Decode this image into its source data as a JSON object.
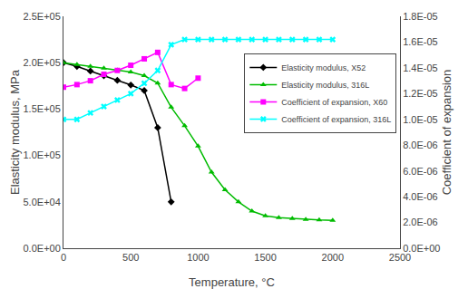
{
  "chart_data": {
    "type": "line",
    "x_label": "Temperature, °C",
    "y_label": "Elasticity modulus, MPa",
    "y2_label": "Coefficient of expansion",
    "xlim": [
      0,
      2500
    ],
    "ylim": [
      0,
      250000
    ],
    "y2lim": [
      0,
      1.8e-05
    ],
    "xticks": [
      0,
      500,
      1000,
      1500,
      2000,
      2500
    ],
    "yticks": [
      {
        "value": 0,
        "label": "0.0E+00"
      },
      {
        "value": 50000,
        "label": "5.0E+04"
      },
      {
        "value": 100000,
        "label": "1.0E+05"
      },
      {
        "value": 150000,
        "label": "1.5E+05"
      },
      {
        "value": 200000,
        "label": "2.0E+05"
      },
      {
        "value": 250000,
        "label": "2.5E+05"
      }
    ],
    "y2ticks": [
      {
        "value": 0,
        "label": "0.0E+00"
      },
      {
        "value": 2e-06,
        "label": "2.0E-06"
      },
      {
        "value": 4e-06,
        "label": "4.0E-06"
      },
      {
        "value": 6e-06,
        "label": "6.0E-06"
      },
      {
        "value": 8e-06,
        "label": "8.0E-06"
      },
      {
        "value": 1e-05,
        "label": "1.0E-05"
      },
      {
        "value": 1.2e-05,
        "label": "1.2E-05"
      },
      {
        "value": 1.4e-05,
        "label": "1.4E-05"
      },
      {
        "value": 1.6e-05,
        "label": "1.6E-05"
      },
      {
        "value": 1.8e-05,
        "label": "1.8E-05"
      }
    ],
    "grid": false,
    "legend": "upper right",
    "series": [
      {
        "name": "Elasticity modulus, X52",
        "color": "black",
        "marker": "diamond",
        "x": [
          0,
          100,
          200,
          300,
          400,
          500,
          600,
          700,
          800
        ],
        "values": [
          200000,
          196000,
          191000,
          186000,
          181000,
          176000,
          170000,
          130000,
          50000
        ]
      },
      {
        "name": "Elasticity modulus, 316L",
        "color": "#00bb00",
        "marker": "triangle-up",
        "x": [
          0,
          100,
          200,
          300,
          400,
          500,
          600,
          700,
          800,
          900,
          1000,
          1100,
          1200,
          1300,
          1400,
          1500,
          1600,
          1700,
          1800,
          1900,
          2000
        ],
        "values": [
          200000,
          198000,
          196000,
          194000,
          192000,
          190000,
          186000,
          178000,
          152000,
          132000,
          110000,
          82000,
          63000,
          50000,
          40000,
          35000,
          33000,
          32000,
          31000,
          30500,
          30000
        ]
      },
      {
        "name": "Coefficient of expansion, X60",
        "color": "magenta",
        "marker": "square",
        "axis": "y2",
        "x": [
          0,
          100,
          200,
          300,
          400,
          500,
          600,
          700,
          800,
          900,
          1000
        ],
        "values": [
          1.25e-05,
          1.27e-05,
          1.3e-05,
          1.35e-05,
          1.38e-05,
          1.42e-05,
          1.47e-05,
          1.52e-05,
          1.27e-05,
          1.24e-05,
          1.32e-05
        ]
      },
      {
        "name": "Coefficient of expansion, 316L",
        "color": "cyan",
        "marker": "x",
        "axis": "y2",
        "x": [
          0,
          100,
          200,
          300,
          400,
          500,
          600,
          700,
          800,
          900,
          1000,
          1100,
          1200,
          1300,
          1400,
          1500,
          1600,
          1700,
          1800,
          1900,
          2000
        ],
        "values": [
          1e-05,
          1e-05,
          1.05e-05,
          1.1e-05,
          1.15e-05,
          1.2e-05,
          1.28e-05,
          1.38e-05,
          1.58e-05,
          1.62e-05,
          1.62e-05,
          1.62e-05,
          1.62e-05,
          1.62e-05,
          1.62e-05,
          1.62e-05,
          1.62e-05,
          1.62e-05,
          1.62e-05,
          1.62e-05,
          1.62e-05
        ]
      }
    ]
  }
}
